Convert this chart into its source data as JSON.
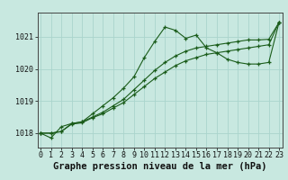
{
  "xlabel": "Graphe pression niveau de la mer (hPa)",
  "bg_color": "#c8e8e0",
  "grid_color": "#aad4cc",
  "line_color": "#1a5c1a",
  "hours": [
    0,
    1,
    2,
    3,
    4,
    5,
    6,
    7,
    8,
    9,
    10,
    11,
    12,
    13,
    14,
    15,
    16,
    17,
    18,
    19,
    20,
    21,
    22,
    23
  ],
  "line1": [
    1018.0,
    1017.85,
    1018.2,
    1018.3,
    1018.35,
    1018.6,
    1018.85,
    1019.1,
    1019.4,
    1019.75,
    1020.35,
    1020.85,
    1021.3,
    1021.2,
    1020.95,
    1021.05,
    1020.65,
    1020.5,
    1020.3,
    1020.2,
    1020.15,
    1020.15,
    1020.2,
    1021.45
  ],
  "line2": [
    1018.0,
    1018.0,
    1018.05,
    1018.3,
    1018.35,
    1018.5,
    1018.65,
    1018.85,
    1019.05,
    1019.35,
    1019.65,
    1019.95,
    1020.2,
    1020.4,
    1020.55,
    1020.65,
    1020.7,
    1020.75,
    1020.8,
    1020.85,
    1020.9,
    1020.9,
    1020.92,
    1021.45
  ],
  "line3": [
    1018.0,
    1018.0,
    1018.05,
    1018.28,
    1018.32,
    1018.48,
    1018.6,
    1018.78,
    1018.95,
    1019.2,
    1019.45,
    1019.7,
    1019.9,
    1020.1,
    1020.25,
    1020.35,
    1020.45,
    1020.5,
    1020.55,
    1020.6,
    1020.65,
    1020.7,
    1020.75,
    1021.45
  ],
  "ylim": [
    1017.55,
    1021.75
  ],
  "yticks": [
    1018,
    1019,
    1020,
    1021
  ],
  "xticks": [
    0,
    1,
    2,
    3,
    4,
    5,
    6,
    7,
    8,
    9,
    10,
    11,
    12,
    13,
    14,
    15,
    16,
    17,
    18,
    19,
    20,
    21,
    22,
    23
  ],
  "xlabel_fontsize": 7.5,
  "tick_fontsize": 6.0
}
